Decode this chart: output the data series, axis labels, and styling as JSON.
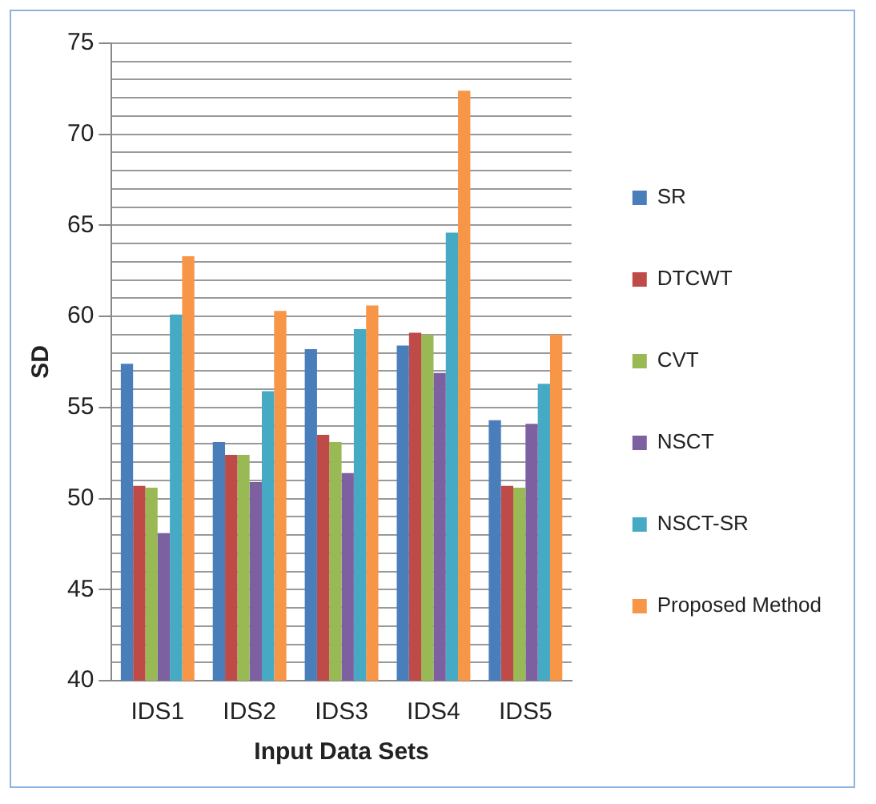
{
  "chart_data": {
    "type": "bar",
    "xlabel": "Input Data Sets",
    "ylabel": "SD",
    "categories": [
      "IDS1",
      "IDS2",
      "IDS3",
      "IDS4",
      "IDS5"
    ],
    "series": [
      {
        "name": "SR",
        "color": "#4a7ebb",
        "values": [
          57.4,
          53.1,
          58.2,
          58.4,
          54.3
        ]
      },
      {
        "name": "DTCWT",
        "color": "#be4b48",
        "values": [
          50.7,
          52.4,
          53.5,
          59.1,
          50.7
        ]
      },
      {
        "name": "CVT",
        "color": "#98b954",
        "values": [
          50.6,
          52.4,
          53.1,
          59.0,
          50.6
        ]
      },
      {
        "name": "NSCT",
        "color": "#7d60a0",
        "values": [
          48.1,
          50.9,
          51.4,
          56.9,
          54.1
        ]
      },
      {
        "name": "NSCT-SR",
        "color": "#46aac5",
        "values": [
          60.1,
          55.9,
          59.3,
          64.6,
          56.3
        ]
      },
      {
        "name": "Proposed Method",
        "color": "#f79646",
        "values": [
          63.3,
          60.3,
          60.6,
          72.4,
          59.0
        ]
      }
    ],
    "ylim": [
      40,
      75
    ],
    "yticks": [
      40,
      45,
      50,
      55,
      60,
      65,
      70,
      75
    ],
    "grid": "y",
    "legend": "right"
  }
}
